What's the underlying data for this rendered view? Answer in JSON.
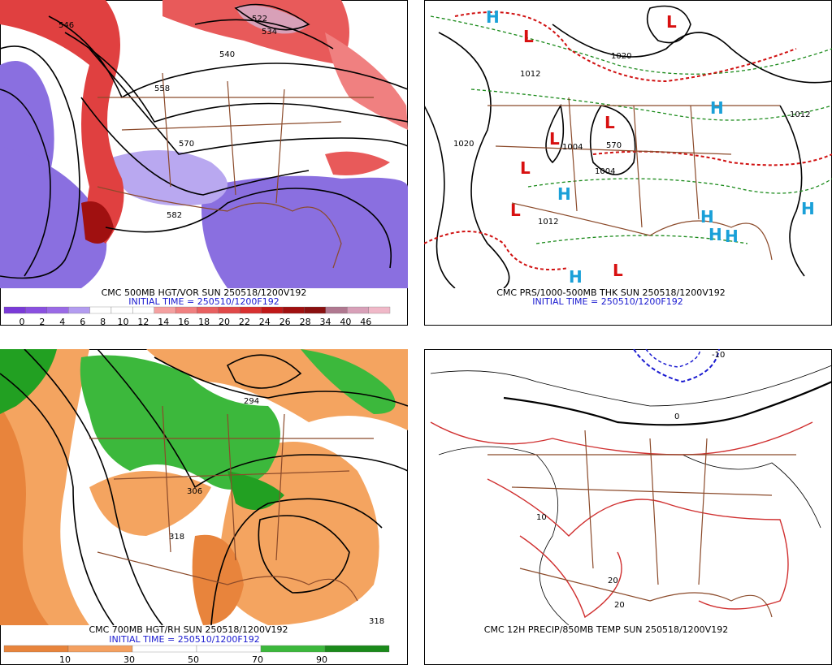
{
  "panels": [
    {
      "caption": "CMC 500MB HGT/VOR SUN 250518/1200V192",
      "init": "INITIAL TIME = 250510/1200F192",
      "colorbar": [
        0,
        2,
        4,
        6,
        8,
        10,
        12,
        14,
        16,
        18,
        20,
        22,
        24,
        26,
        28,
        34,
        40,
        46
      ],
      "labels": [
        "546",
        "522",
        "534",
        "540",
        "558",
        "570",
        "582"
      ]
    },
    {
      "caption": "CMC PRS/1000-500MB THK SUN 250518/1200V192",
      "init": "INITIAL TIME = 250510/1200F192",
      "labels": [
        "1012",
        "1020",
        "1004",
        "1004",
        "1012",
        "1012",
        "1020",
        "570"
      ],
      "centers": [
        "H",
        "L",
        "L",
        "L",
        "L",
        "L",
        "L",
        "H",
        "H",
        "H",
        "H",
        "H",
        "H",
        "H",
        "L"
      ]
    },
    {
      "caption": "CMC 700MB HGT/RH SUN 250518/1200V192",
      "init": "INITIAL TIME = 250510/1200F192",
      "colorbar": [
        10,
        30,
        50,
        70,
        90
      ],
      "labels": [
        "294",
        "306",
        "318",
        "318"
      ]
    },
    {
      "caption": "CMC 12H PRECIP/850MB TEMP SUN 250518/1200V192",
      "labels": [
        "-10",
        "0",
        "10",
        "20",
        "20"
      ]
    }
  ]
}
